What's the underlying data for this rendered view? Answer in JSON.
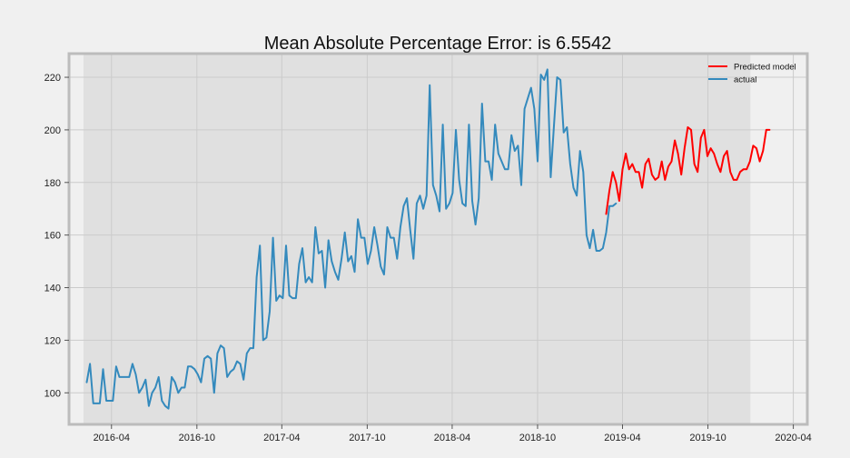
{
  "chart_data": {
    "type": "line",
    "title": "Mean Absolute Percentage Error: is 6.5542",
    "xlabel": "",
    "ylabel": "",
    "x_range": [
      "2016-01-01",
      "2020-05-01"
    ],
    "ylim": [
      88,
      229
    ],
    "grid": true,
    "legend_position": "top-right",
    "shaded_span": [
      "2016-02-01",
      "2019-12-31"
    ],
    "x_ticks": [
      {
        "date": "2016-04-01",
        "label": "2016-04"
      },
      {
        "date": "2016-10-01",
        "label": "2016-10"
      },
      {
        "date": "2017-04-01",
        "label": "2017-04"
      },
      {
        "date": "2017-10-01",
        "label": "2017-10"
      },
      {
        "date": "2018-04-01",
        "label": "2018-04"
      },
      {
        "date": "2018-10-01",
        "label": "2018-10"
      },
      {
        "date": "2019-04-01",
        "label": "2019-04"
      },
      {
        "date": "2019-10-01",
        "label": "2019-10"
      },
      {
        "date": "2020-04-01",
        "label": "2020-04"
      }
    ],
    "y_ticks": [
      100,
      120,
      140,
      160,
      180,
      200,
      220
    ],
    "series": [
      {
        "name": "Predicted model",
        "color": "#ff0000",
        "start_date": "2019-02-25",
        "step_days": 7,
        "values": [
          168,
          177,
          184,
          180,
          173,
          185,
          191,
          185,
          187,
          184,
          184,
          178,
          187,
          189,
          183,
          181,
          182,
          188,
          181,
          186,
          188,
          196,
          191,
          183,
          193,
          201,
          200,
          187,
          184,
          197,
          200,
          190,
          193,
          191,
          187,
          184,
          190,
          192,
          184,
          181,
          181,
          184,
          185,
          185,
          188,
          194,
          193,
          188,
          192,
          200,
          200
        ]
      },
      {
        "name": "actual",
        "color": "#348abd",
        "start_date": "2016-02-08",
        "step_days": 7,
        "values": [
          104,
          111,
          96,
          96,
          96,
          109,
          97,
          97,
          97,
          110,
          106,
          106,
          106,
          106,
          111,
          107,
          100,
          102,
          105,
          95,
          100,
          102,
          106,
          97,
          95,
          94,
          106,
          104,
          100,
          102,
          102,
          110,
          110,
          109,
          107,
          104,
          113,
          114,
          113,
          100,
          115,
          118,
          117,
          106,
          108,
          109,
          112,
          111,
          105,
          115,
          117,
          117,
          144,
          156,
          120,
          121,
          131,
          159,
          135,
          137,
          136,
          156,
          137,
          136,
          136,
          149,
          155,
          142,
          144,
          142,
          163,
          153,
          154,
          140,
          158,
          150,
          146,
          143,
          151,
          161,
          150,
          152,
          146,
          166,
          159,
          159,
          149,
          154,
          163,
          156,
          148,
          145,
          163,
          159,
          159,
          151,
          163,
          171,
          174,
          162,
          151,
          172,
          175,
          170,
          175,
          217,
          179,
          175,
          169,
          202,
          170,
          172,
          176,
          200,
          181,
          172,
          171,
          202,
          173,
          164,
          174,
          210,
          188,
          188,
          181,
          202,
          191,
          188,
          185,
          185,
          198,
          192,
          194,
          179,
          208,
          212,
          216,
          208,
          188,
          221,
          219,
          223,
          182,
          201,
          220,
          219,
          199,
          201,
          187,
          178,
          175,
          192,
          184,
          160,
          155,
          162,
          154,
          154,
          155,
          161,
          171,
          171,
          172
        ]
      }
    ]
  }
}
